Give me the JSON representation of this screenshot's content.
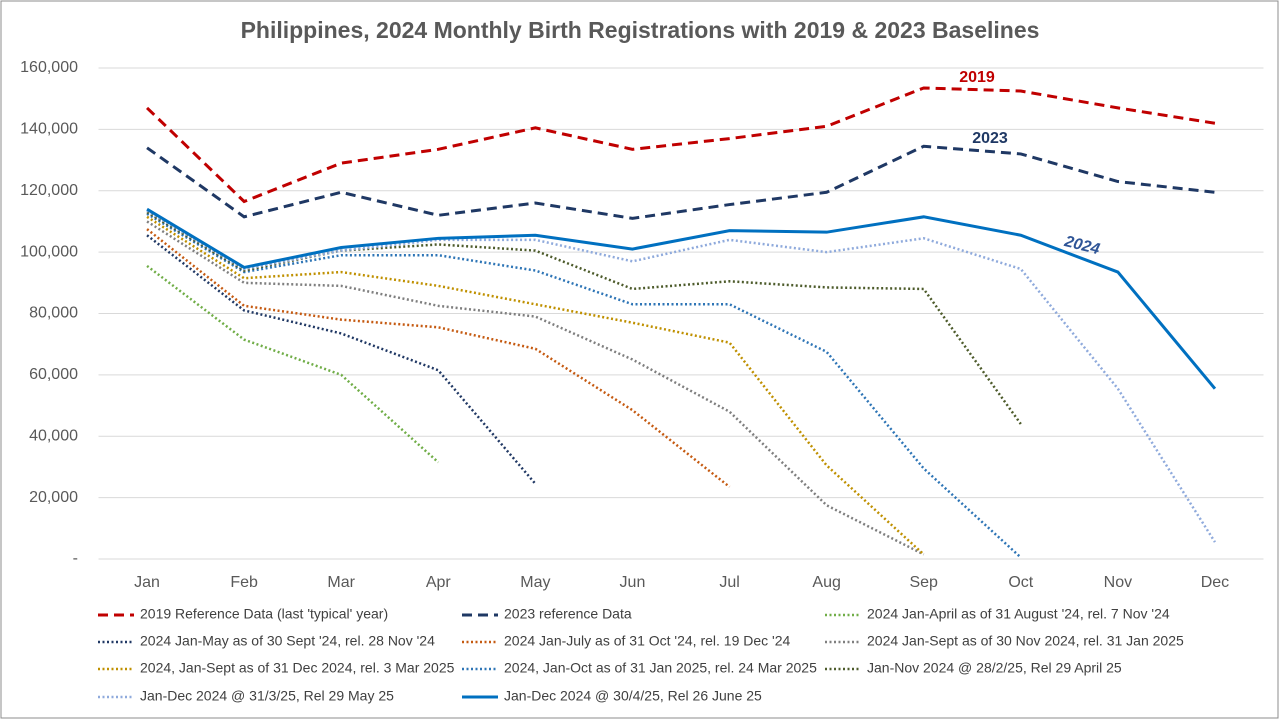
{
  "chart_data": {
    "type": "line",
    "title": "Philippines, 2024 Monthly Birth Registrations with 2019 & 2023 Baselines",
    "categories": [
      "Jan",
      "Feb",
      "Mar",
      "Apr",
      "May",
      "Jun",
      "Jul",
      "Aug",
      "Sep",
      "Oct",
      "Nov",
      "Dec"
    ],
    "ylim": [
      0,
      160000
    ],
    "yticks": [
      {
        "value": 0,
        "label": "-"
      },
      {
        "value": 20000,
        "label": "20,000"
      },
      {
        "value": 40000,
        "label": "40,000"
      },
      {
        "value": 60000,
        "label": "60,000"
      },
      {
        "value": 80000,
        "label": "80,000"
      },
      {
        "value": 100000,
        "label": "100,000"
      },
      {
        "value": 120000,
        "label": "120,000"
      },
      {
        "value": 140000,
        "label": "140,000"
      },
      {
        "value": 160000,
        "label": "160,000"
      }
    ],
    "grid": true,
    "legend": "bottom",
    "annotations": [
      {
        "text": "2019",
        "color": "#c00000"
      },
      {
        "text": "2023",
        "color": "#1f3864"
      },
      {
        "text": "2024",
        "color": "#2f5597"
      }
    ],
    "series": [
      {
        "name": "2019  Reference Data (last 'typical' year)",
        "color": "#c00000",
        "dash": "dashed",
        "values": [
          147000,
          116500,
          129000,
          133500,
          140500,
          133500,
          137000,
          141000,
          153500,
          152500,
          147000,
          142000
        ]
      },
      {
        "name": "2023 reference Data",
        "color": "#1f3864",
        "dash": "dashed",
        "values": [
          134000,
          111500,
          119500,
          112000,
          116000,
          111000,
          115500,
          119500,
          134500,
          132000,
          123000,
          119500
        ]
      },
      {
        "name": "2024 Jan-April as of 31 August '24, rel. 7 Nov '24",
        "color": "#70ad47",
        "dash": "dotted",
        "values": [
          95500,
          71500,
          60000,
          31500,
          null,
          null,
          null,
          null,
          null,
          null,
          null,
          null
        ]
      },
      {
        "name": "2024 Jan-May as of 30 Sept '24, rel. 28 Nov '24",
        "color": "#203864",
        "dash": "dotted",
        "values": [
          105500,
          81000,
          73500,
          61500,
          24500,
          null,
          null,
          null,
          null,
          null,
          null,
          null
        ]
      },
      {
        "name": "2024 Jan-July as of 31 Oct '24, rel. 19 Dec '24",
        "color": "#c55a11",
        "dash": "dotted",
        "values": [
          107500,
          82500,
          78000,
          75500,
          68500,
          48500,
          23500,
          null,
          null,
          null,
          null,
          null
        ]
      },
      {
        "name": "2024 Jan-Sept as of 30 Nov 2024, rel. 31 Jan 2025",
        "color": "#7f7f7f",
        "dash": "dotted",
        "values": [
          110000,
          90000,
          89000,
          82500,
          79000,
          65000,
          48000,
          17500,
          1500,
          null,
          null,
          null
        ]
      },
      {
        "name": "2024, Jan-Sept as of 31 Dec 2024, rel. 3 Mar 2025",
        "color": "#bf9000",
        "dash": "dotted",
        "values": [
          111500,
          91500,
          93500,
          89000,
          83000,
          77000,
          70500,
          30500,
          1500,
          null,
          null,
          null
        ]
      },
      {
        "name": "2024, Jan-Oct as of 31 Jan 2025, rel. 24 Mar 2025",
        "color": "#2e75b6",
        "dash": "dotted",
        "values": [
          112500,
          93500,
          99000,
          99000,
          94000,
          83000,
          83000,
          67500,
          29500,
          500,
          null,
          null
        ]
      },
      {
        "name": "Jan-Nov 2024 @ 28/2/25, Rel 29 April 25",
        "color": "#4d5b2b",
        "dash": "dotted",
        "values": [
          113000,
          94000,
          100500,
          102500,
          100500,
          88000,
          90500,
          88500,
          88000,
          44000,
          null,
          null
        ]
      },
      {
        "name": "Jan-Dec 2024 @ 31/3/25, Rel 29 May 25",
        "color": "#8faadc",
        "dash": "dotted",
        "values": [
          113500,
          94500,
          100500,
          104000,
          104000,
          97000,
          104000,
          100000,
          104500,
          94500,
          55500,
          5500
        ]
      },
      {
        "name": "Jan-Dec 2024 @ 30/4/25, Rel 26 June 25",
        "color": "#0070c0",
        "dash": "solid",
        "values": [
          114000,
          95000,
          101500,
          104500,
          105500,
          101000,
          107000,
          106500,
          111500,
          105500,
          93500,
          55500
        ]
      }
    ]
  }
}
